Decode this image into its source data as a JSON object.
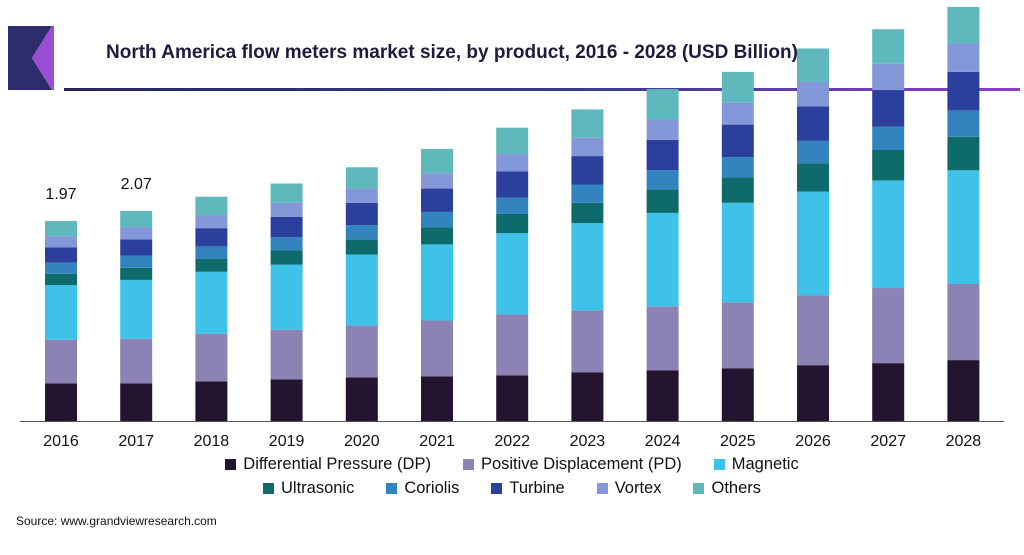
{
  "header": {
    "title": "North America flow meters market size, by product, 2016 - 2028 (USD Billion)"
  },
  "source": "Source: www.grandviewresearch.com",
  "colors": {
    "logo_dark": "#2d2d6e",
    "logo_accent": "#9a4fd2",
    "axis": "#555555"
  },
  "chart_data": {
    "type": "bar",
    "stacked": true,
    "title": "North America flow meters market size, by product, 2016 - 2028 (USD Billion)",
    "ylabel": "",
    "xlabel": "",
    "categories": [
      "2016",
      "2017",
      "2018",
      "2019",
      "2020",
      "2021",
      "2022",
      "2023",
      "2024",
      "2025",
      "2026",
      "2027",
      "2028"
    ],
    "series": [
      {
        "name": "Differential Pressure (DP)",
        "color": "#23152f",
        "values": [
          0.37,
          0.37,
          0.39,
          0.41,
          0.43,
          0.44,
          0.45,
          0.48,
          0.5,
          0.52,
          0.55,
          0.57,
          0.6
        ]
      },
      {
        "name": "Positive Displacement (PD)",
        "color": "#8c82b4",
        "values": [
          0.43,
          0.44,
          0.47,
          0.49,
          0.51,
          0.55,
          0.6,
          0.61,
          0.63,
          0.65,
          0.69,
          0.74,
          0.75
        ]
      },
      {
        "name": "Magnetic",
        "color": "#3ec2ea",
        "values": [
          0.54,
          0.58,
          0.61,
          0.64,
          0.7,
          0.75,
          0.8,
          0.86,
          0.92,
          0.98,
          1.02,
          1.06,
          1.12
        ]
      },
      {
        "name": "Ultrasonic",
        "color": "#0f6a6c",
        "values": [
          0.11,
          0.12,
          0.13,
          0.14,
          0.15,
          0.17,
          0.19,
          0.2,
          0.23,
          0.25,
          0.28,
          0.3,
          0.33
        ]
      },
      {
        "name": "Coriolis",
        "color": "#3384be",
        "values": [
          0.11,
          0.12,
          0.12,
          0.13,
          0.14,
          0.15,
          0.16,
          0.18,
          0.19,
          0.2,
          0.22,
          0.23,
          0.26
        ]
      },
      {
        "name": "Turbine",
        "color": "#2b3f9c",
        "values": [
          0.15,
          0.16,
          0.18,
          0.2,
          0.22,
          0.23,
          0.26,
          0.28,
          0.3,
          0.32,
          0.34,
          0.36,
          0.38
        ]
      },
      {
        "name": "Vortex",
        "color": "#8497d8",
        "values": [
          0.11,
          0.12,
          0.13,
          0.14,
          0.14,
          0.15,
          0.17,
          0.18,
          0.2,
          0.22,
          0.24,
          0.26,
          0.28
        ]
      },
      {
        "name": "Others",
        "color": "#5fb8bc",
        "values": [
          0.15,
          0.16,
          0.18,
          0.19,
          0.21,
          0.24,
          0.26,
          0.28,
          0.3,
          0.3,
          0.33,
          0.34,
          0.36
        ]
      }
    ],
    "data_labels": [
      {
        "category": "2016",
        "text": "1.97"
      },
      {
        "category": "2017",
        "text": "2.07"
      }
    ],
    "grid": false,
    "legend_position": "bottom"
  }
}
